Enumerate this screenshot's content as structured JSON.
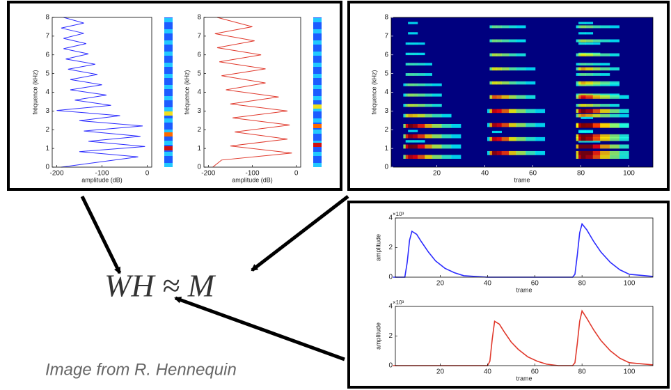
{
  "chart_data": [
    {
      "type": "line",
      "orientation": "horizontal",
      "xlabel": "amplitude (dB)",
      "ylabel": "fréquence (kHz)",
      "xlim": [
        -210,
        10
      ],
      "xticks": [
        -200,
        -100,
        0
      ],
      "ylim": [
        0,
        8
      ],
      "yticks": [
        0,
        1,
        2,
        3,
        4,
        5,
        6,
        7,
        8
      ],
      "series": [
        {
          "color": "#2b2bff",
          "frequencies": [
            0,
            0.55,
            0.83,
            1.1,
            1.38,
            1.65,
            1.93,
            2.2,
            2.48,
            2.75,
            3.03,
            3.3,
            3.58,
            3.85,
            4.13,
            4.4,
            4.68,
            4.95,
            5.23,
            5.5,
            5.78,
            6.05,
            6.33,
            6.6,
            6.88,
            7.15,
            7.43,
            7.7,
            8
          ],
          "values": [
            -190,
            -20,
            -150,
            -5,
            -130,
            -15,
            -140,
            -10,
            -150,
            -60,
            -200,
            -80,
            -160,
            -90,
            -170,
            -100,
            -170,
            -110,
            -175,
            -115,
            -180,
            -130,
            -185,
            -135,
            -185,
            -140,
            -190,
            -140,
            -185
          ]
        }
      ]
    },
    {
      "type": "line",
      "orientation": "horizontal",
      "xlabel": "amplitude (dB)",
      "ylabel": "fréquence (kHz)",
      "xlim": [
        -210,
        10
      ],
      "xticks": [
        -200,
        -100,
        0
      ],
      "ylim": [
        0,
        8
      ],
      "yticks": [
        0,
        1,
        2,
        3,
        4,
        5,
        6,
        7,
        8
      ],
      "series": [
        {
          "color": "#e0382b",
          "frequencies": [
            0,
            0.38,
            0.75,
            1.13,
            1.5,
            1.88,
            2.25,
            2.63,
            3.0,
            3.38,
            3.75,
            4.13,
            4.5,
            4.88,
            5.25,
            5.63,
            6.0,
            6.38,
            6.75,
            7.13,
            7.5,
            8
          ],
          "values": [
            -190,
            -170,
            -10,
            -150,
            -20,
            -140,
            -15,
            -145,
            -20,
            -150,
            -40,
            -160,
            -70,
            -170,
            -70,
            -175,
            -80,
            -180,
            -95,
            -185,
            -100,
            -180
          ]
        }
      ]
    },
    {
      "type": "spectrogram",
      "xlabel": "trame",
      "ylabel": "fréquence (kHz)",
      "xlim": [
        1,
        110
      ],
      "xticks": [
        20,
        40,
        60,
        80,
        100
      ],
      "ylim": [
        0,
        8
      ],
      "yticks": [
        0,
        1,
        2,
        3,
        4,
        5,
        6,
        7,
        8
      ]
    },
    {
      "type": "line",
      "xlabel": "trame",
      "ylabel": "amplitude",
      "y_multiplier": "×10³",
      "xlim": [
        1,
        110
      ],
      "xticks": [
        20,
        40,
        60,
        80,
        100
      ],
      "ylim": [
        0,
        4
      ],
      "yticks": [
        0,
        2,
        4
      ],
      "series": [
        {
          "color": "#2b2bff",
          "x": [
            0,
            5,
            6,
            7,
            8,
            10,
            12,
            15,
            18,
            22,
            26,
            30,
            40,
            60,
            76,
            77,
            78,
            79,
            80,
            82,
            85,
            88,
            92,
            96,
            100,
            110
          ],
          "values": [
            0,
            0,
            1.0,
            2.5,
            3.1,
            2.9,
            2.4,
            1.7,
            1.1,
            0.6,
            0.3,
            0.1,
            0,
            0,
            0,
            0.2,
            1.5,
            3.0,
            3.6,
            3.2,
            2.4,
            1.7,
            1.0,
            0.5,
            0.2,
            0.05
          ]
        }
      ]
    },
    {
      "type": "line",
      "xlabel": "trame",
      "ylabel": "amplitude",
      "y_multiplier": "×10³",
      "xlim": [
        1,
        110
      ],
      "xticks": [
        20,
        40,
        60,
        80,
        100
      ],
      "ylim": [
        0,
        4
      ],
      "yticks": [
        0,
        2,
        4
      ],
      "series": [
        {
          "color": "#e0382b",
          "x": [
            0,
            40,
            41,
            42,
            43,
            45,
            47,
            50,
            53,
            57,
            61,
            65,
            70,
            76,
            77,
            78,
            79,
            80,
            82,
            85,
            88,
            92,
            96,
            100,
            110
          ],
          "values": [
            0,
            0,
            0.3,
            1.8,
            3.0,
            2.8,
            2.3,
            1.6,
            1.1,
            0.6,
            0.3,
            0.1,
            0,
            0,
            0.2,
            1.5,
            3.0,
            3.7,
            3.2,
            2.4,
            1.7,
            1.0,
            0.5,
            0.2,
            0.05
          ]
        }
      ]
    }
  ],
  "equation": "WH ≈ M",
  "caption": "Image from R. Hennequin"
}
